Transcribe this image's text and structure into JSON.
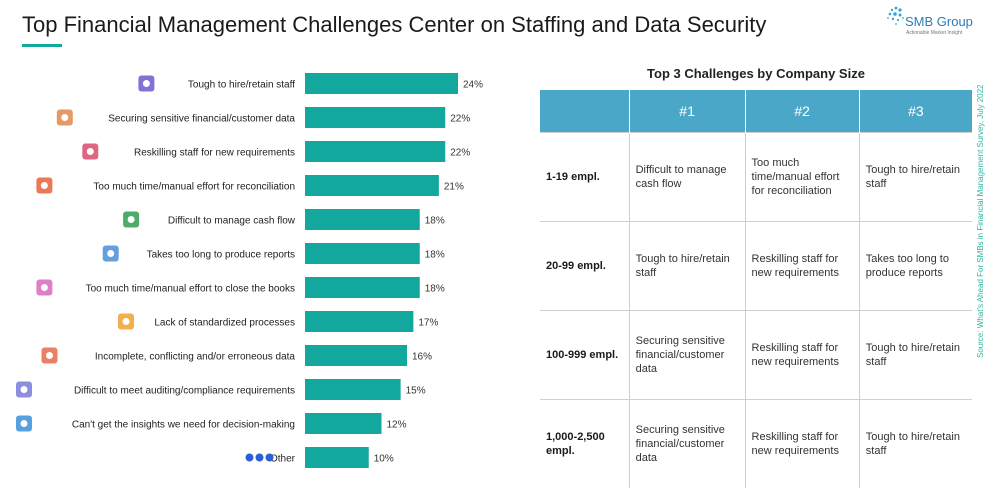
{
  "header": {
    "title": "Top Financial Management Challenges Center on Staffing and Data Security",
    "logo_name": "SMB Group",
    "logo_tagline": "Actionable Market Insight"
  },
  "colors": {
    "bar": "#13a89e",
    "table_header": "#4aa7c7",
    "accent": "#13a89e"
  },
  "chart_data": {
    "type": "bar",
    "orientation": "horizontal",
    "categories": [
      "Tough to hire/retain staff",
      "Securing sensitive financial/customer data",
      "Reskilling staff for new requirements",
      "Too much time/manual effort for reconciliation",
      "Difficult to manage cash flow",
      "Takes too long to produce reports",
      "Too much time/manual effort to close the books",
      "Lack of standardized processes",
      "Incomplete, conflicting and/or erroneous data",
      "Difficult to meet auditing/compliance requirements",
      "Can't get the insights we need for decision-making",
      "Other"
    ],
    "values": [
      24,
      22,
      22,
      21,
      18,
      18,
      18,
      17,
      16,
      15,
      12,
      10
    ],
    "value_labels": [
      "24%",
      "22%",
      "22%",
      "21%",
      "18%",
      "18%",
      "18%",
      "17%",
      "16%",
      "15%",
      "12%",
      "10%"
    ],
    "icons": [
      "magnifier-person-icon",
      "hand-coins-icon",
      "people-training-icon",
      "stopwatch-icon",
      "cash-icon",
      "report-icon",
      "book-icon",
      "gear-icon",
      "puzzle-icon",
      "audit-checklist-icon",
      "insight-people-icon",
      "dots-icon"
    ],
    "xlim": [
      0,
      24
    ]
  },
  "table": {
    "title": "Top 3 Challenges by Company Size",
    "headers": [
      "",
      "#1",
      "#2",
      "#3"
    ],
    "rows": [
      {
        "size": "1-19 empl.",
        "c1": "Difficult to manage cash flow",
        "c2": "Too much time/manual effort for reconciliation",
        "c3": "Tough to hire/retain staff"
      },
      {
        "size": "20-99 empl.",
        "c1": "Tough to hire/retain staff",
        "c2": "Reskilling staff for new requirements",
        "c3": "Takes too long to produce reports"
      },
      {
        "size": "100-999 empl.",
        "c1": "Securing sensitive financial/customer data",
        "c2": "Reskilling staff for new requirements",
        "c3": "Tough to hire/retain staff"
      },
      {
        "size": "1,000-2,500 empl.",
        "c1": "Securing sensitive financial/customer data",
        "c2": "Reskilling staff for new requirements",
        "c3": "Tough to hire/retain staff"
      }
    ]
  },
  "source": "Source: What's Ahead For SMBs in Financial Management Survey, July 2022"
}
